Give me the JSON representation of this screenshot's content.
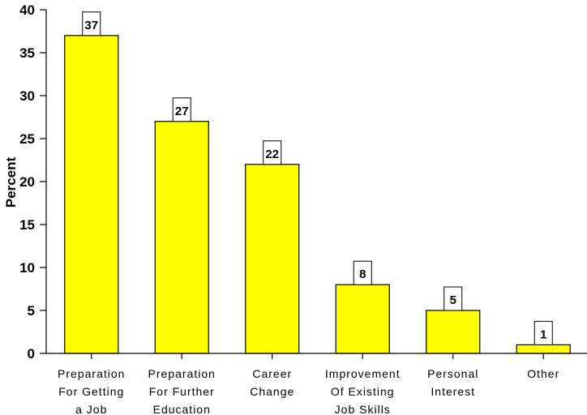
{
  "chart_data": {
    "type": "bar",
    "title": "",
    "xlabel": "",
    "ylabel": "Percent",
    "ylim": [
      0,
      40
    ],
    "yticks": [
      0,
      5,
      10,
      15,
      20,
      25,
      30,
      35,
      40
    ],
    "grid": false,
    "legend": "none",
    "bar_color": "#ffff00",
    "categories": [
      [
        "Preparation",
        "For Getting",
        "a Job"
      ],
      [
        "Preparation",
        "For Further",
        "Education"
      ],
      [
        "Career",
        "Change"
      ],
      [
        "Improvement",
        "Of Existing",
        "Job Skills"
      ],
      [
        "Personal",
        "Interest"
      ],
      [
        "Other"
      ]
    ],
    "values": [
      37,
      27,
      22,
      8,
      5,
      1
    ]
  }
}
